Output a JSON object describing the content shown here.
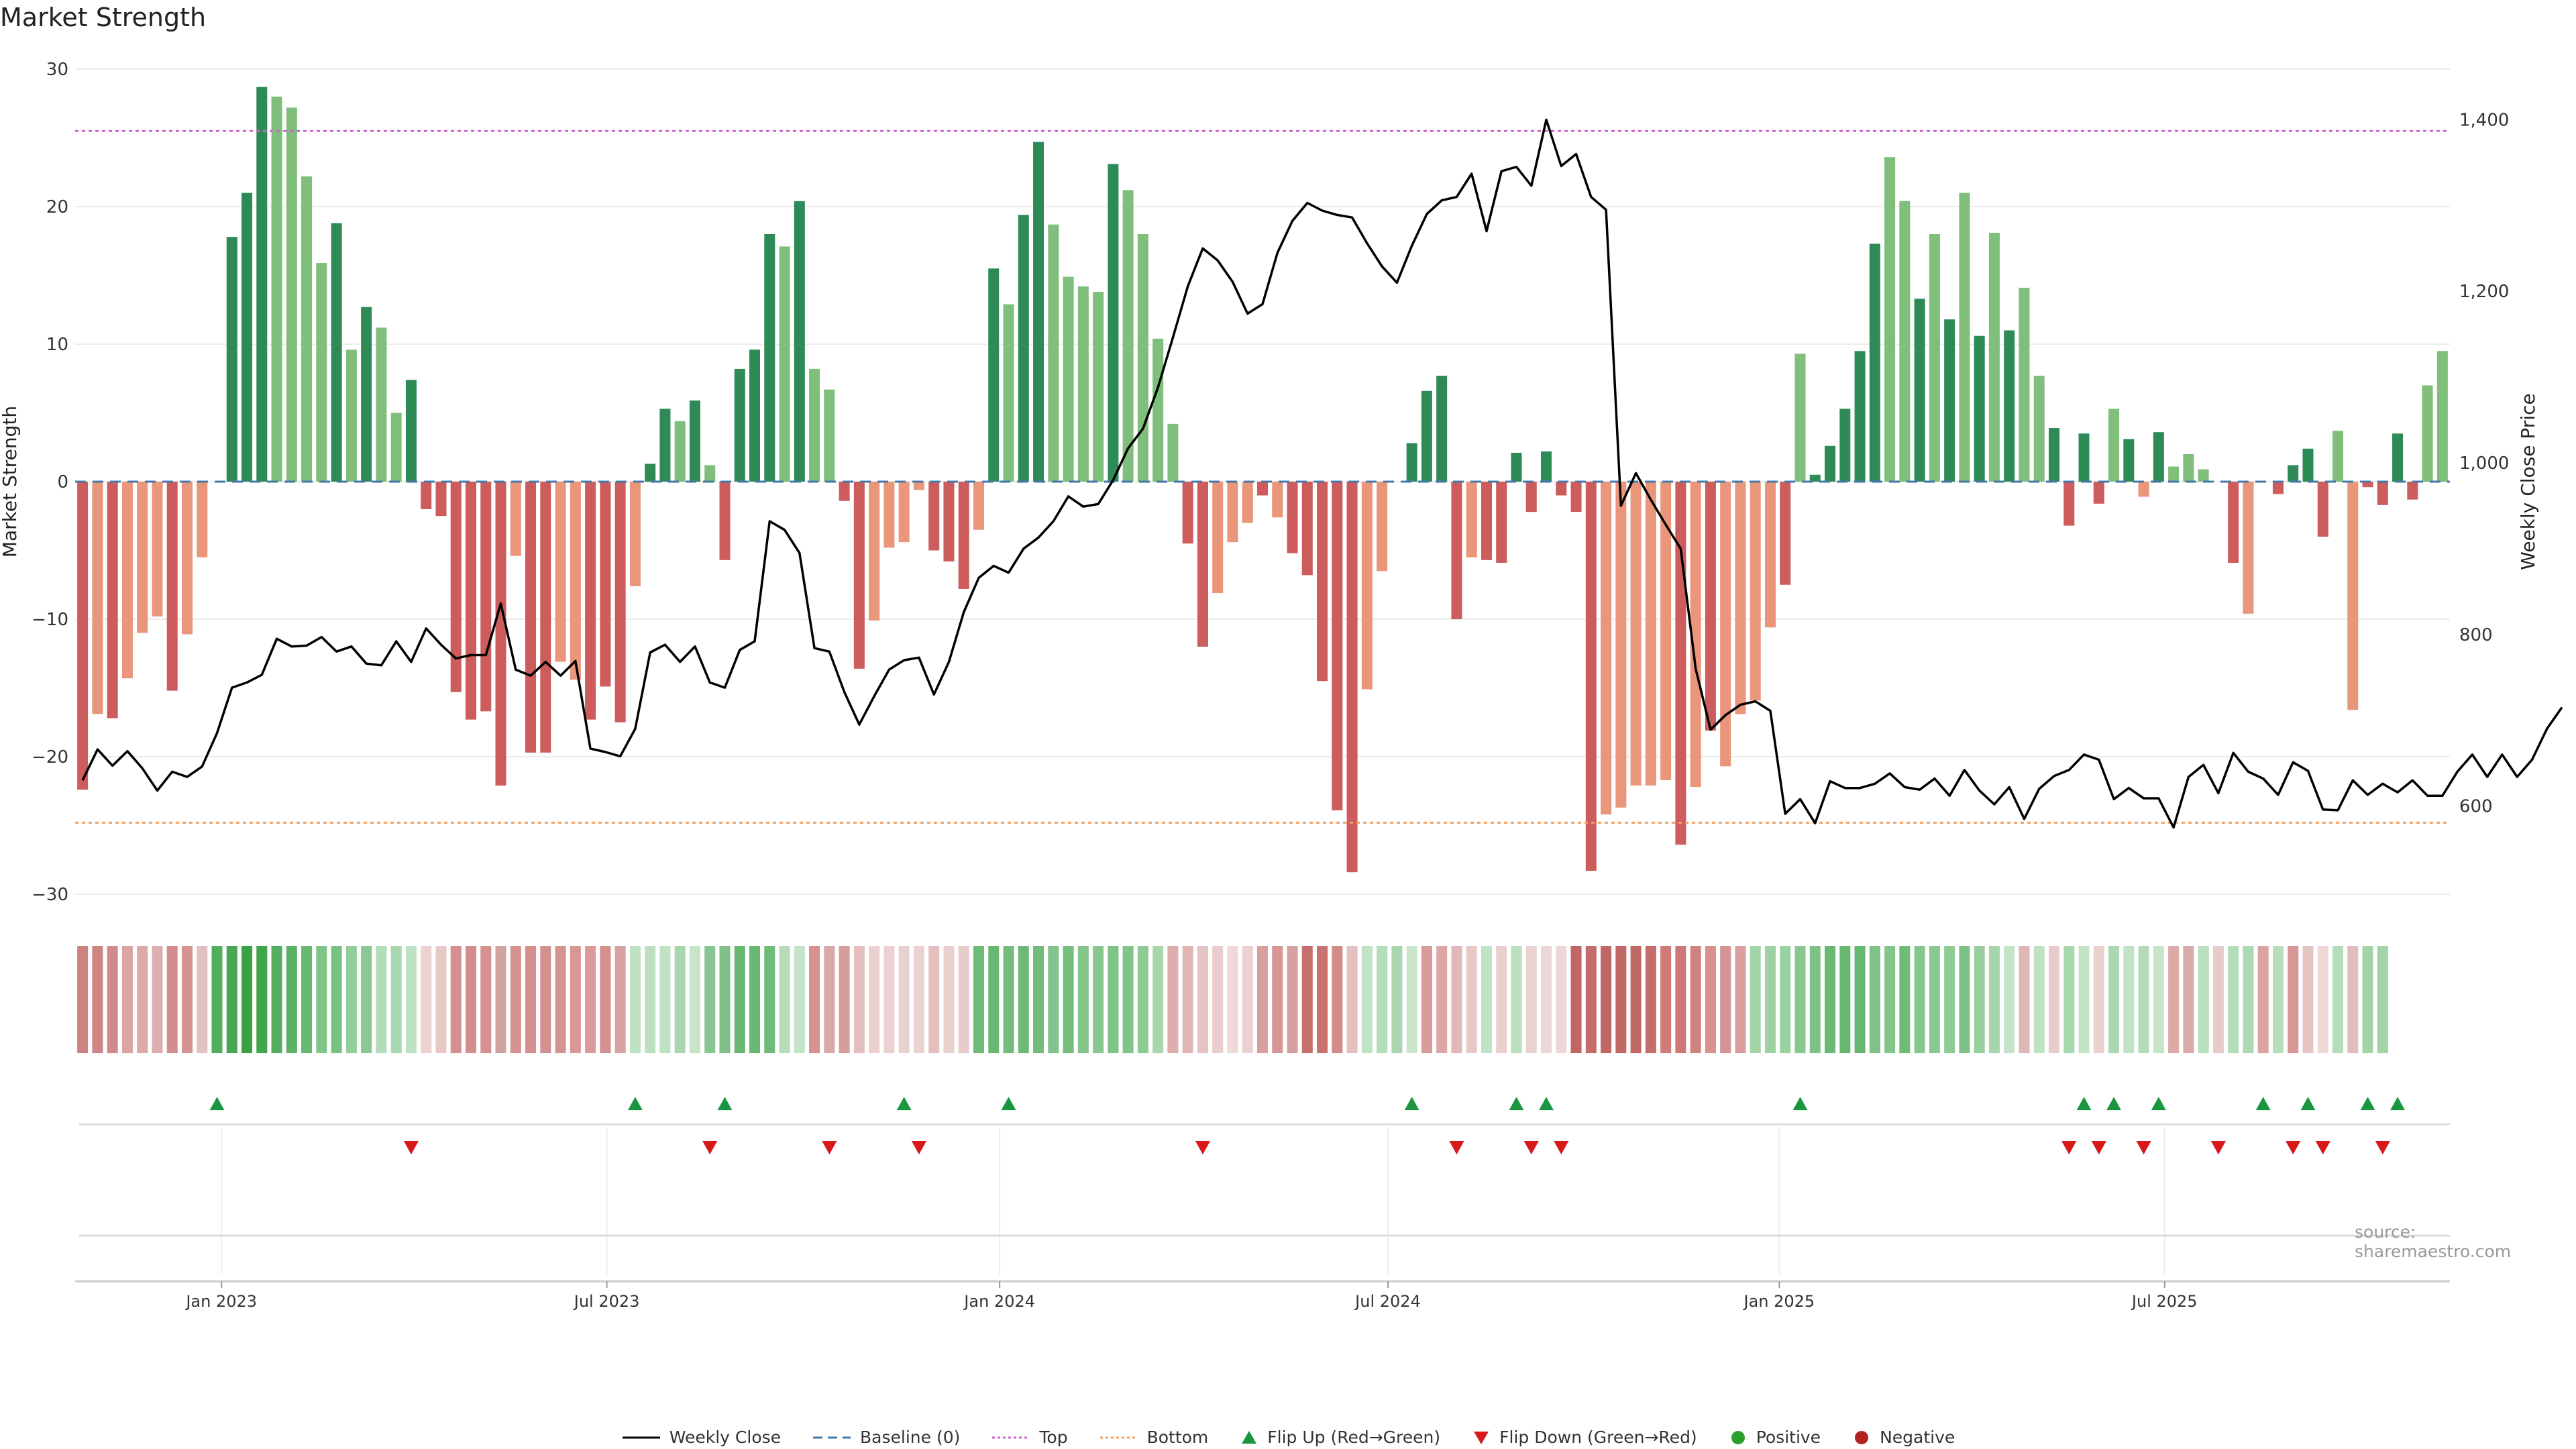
{
  "title": "Market Strength",
  "source": "source: sharemaestro.com",
  "colors": {
    "green_dark": "#2e8b57",
    "green_light": "#7fbf7b",
    "red_dark": "#cd5c5c",
    "red_light": "#e9967a",
    "top_line": "#cc66cc",
    "bottom_line": "#f0a060",
    "baseline": "#4477aa",
    "flip_up": "#1a9641",
    "flip_down": "#d7191c",
    "positive": "#2ca02c",
    "negative": "#b22222",
    "price": "#000000"
  },
  "chart_data": {
    "type": "bar",
    "title": "Market Strength",
    "ylabel": "Market Strength",
    "y2label": "Weekly Close Price",
    "ylim": [
      -30,
      30
    ],
    "y2lim": [
      500,
      1470
    ],
    "yticks": [
      -30,
      -20,
      -10,
      0,
      10,
      20,
      30
    ],
    "yticklabels": [
      "−30",
      "−20",
      "−10",
      "0",
      "10",
      "20",
      "30"
    ],
    "y2ticks": [
      600,
      800,
      1000,
      1200,
      1400
    ],
    "y2ticklabels": [
      "600",
      "800",
      "1,000",
      "1,200",
      "1,400"
    ],
    "x_start_week": 0,
    "x_end_week": 157,
    "xticks": [
      {
        "week": 9.3,
        "label": "Jan 2023"
      },
      {
        "week": 35.1,
        "label": "Jul 2023"
      },
      {
        "week": 61.4,
        "label": "Jan 2024"
      },
      {
        "week": 87.4,
        "label": "Jul 2024"
      },
      {
        "week": 113.6,
        "label": "Jan 2025"
      },
      {
        "week": 139.4,
        "label": "Jul 2025"
      }
    ],
    "top_level": 25.5,
    "bottom_level": -24.8,
    "strength": [
      -22.4,
      -16.9,
      -17.2,
      -14.3,
      -11,
      -9.8,
      -15.2,
      -11.1,
      -5.5,
      0,
      17.8,
      21,
      28.7,
      28,
      27.2,
      22.2,
      15.9,
      18.8,
      9.6,
      12.7,
      11.2,
      5,
      7.4,
      -2,
      -2.5,
      -15.3,
      -17.3,
      -16.7,
      -22.1,
      -5.4,
      -19.7,
      -19.7,
      -13.1,
      -14.4,
      -17.3,
      -14.9,
      -17.5,
      -7.6,
      1.3,
      5.3,
      4.4,
      5.9,
      1.2,
      -5.7,
      8.2,
      9.6,
      18,
      17.1,
      20.4,
      8.2,
      6.7,
      -1.4,
      -13.6,
      -10.1,
      -4.8,
      -4.4,
      -0.6,
      -5,
      -5.8,
      -7.8,
      -3.5,
      15.5,
      12.9,
      19.4,
      24.7,
      18.7,
      14.9,
      14.2,
      13.8,
      23.1,
      21.2,
      18,
      10.4,
      4.2,
      -4.5,
      -12,
      -8.1,
      -4.4,
      -3,
      -1,
      -2.6,
      -5.2,
      -6.8,
      -14.5,
      -23.9,
      -28.4,
      -15.1,
      -6.5,
      0,
      2.8,
      6.6,
      7.7,
      -10,
      -5.5,
      -5.7,
      -5.9,
      2.1,
      -2.2,
      2.2,
      -1,
      -2.2,
      -28.3,
      -24.2,
      -23.7,
      -22.1,
      -22.1,
      -21.7,
      -26.4,
      -22.2,
      -18.1,
      -20.7,
      -16.9,
      -15.9,
      -10.6,
      -7.5,
      9.3,
      0.5,
      2.6,
      5.3,
      9.5,
      17.3,
      23.6,
      20.4,
      13.3,
      18,
      11.8,
      21,
      10.6,
      18.1,
      11,
      14.1,
      7.7,
      3.9,
      -3.2,
      3.5,
      -1.6,
      5.3,
      3.1,
      -1.1,
      3.6,
      1.1,
      2,
      0.9,
      0,
      -5.9,
      -9.6,
      0,
      -0.9,
      1.2,
      2.4,
      -4,
      3.7,
      -16.6,
      -0.4,
      -1.7,
      3.5,
      -1.3,
      7,
      9.5
    ],
    "bar_shade": [
      1,
      0,
      1,
      0,
      0,
      0,
      1,
      0,
      0,
      0,
      1,
      1,
      1,
      0,
      0,
      0,
      0,
      1,
      0,
      1,
      0,
      0,
      1,
      1,
      1,
      1,
      1,
      1,
      1,
      0,
      1,
      1,
      0,
      0,
      1,
      1,
      1,
      0,
      1,
      1,
      0,
      1,
      0,
      1,
      1,
      1,
      1,
      0,
      1,
      0,
      0,
      1,
      1,
      0,
      0,
      0,
      0,
      1,
      1,
      1,
      0,
      1,
      0,
      1,
      1,
      0,
      0,
      0,
      0,
      1,
      0,
      0,
      0,
      0,
      1,
      1,
      0,
      0,
      0,
      1,
      0,
      1,
      1,
      1,
      1,
      1,
      0,
      0,
      0,
      1,
      1,
      1,
      1,
      0,
      1,
      1,
      1,
      1,
      1,
      1,
      1,
      1,
      0,
      0,
      0,
      0,
      0,
      1,
      0,
      1,
      0,
      0,
      0,
      0,
      1,
      0,
      1,
      1,
      1,
      1,
      1,
      0,
      0,
      1,
      0,
      1,
      0,
      1,
      0,
      1,
      0,
      0,
      1,
      1,
      1,
      1,
      0,
      1,
      0,
      1,
      0,
      0,
      0,
      1,
      1,
      0,
      0,
      1,
      1,
      1,
      1,
      0,
      0,
      1,
      1,
      1,
      1
    ],
    "price_series": {
      "name": "Weekly Close",
      "values": [
        630,
        666,
        647,
        664,
        644,
        618,
        640,
        634,
        646,
        685,
        738,
        744,
        753,
        795,
        786,
        787,
        797,
        780,
        786,
        766,
        764,
        792,
        768,
        807,
        788,
        772,
        776,
        776,
        836,
        759,
        752,
        768,
        752,
        769,
        667,
        663,
        658,
        690,
        779,
        788,
        768,
        786,
        744,
        738,
        782,
        792,
        932,
        922,
        895,
        784,
        780,
        733,
        695,
        728,
        759,
        770,
        773,
        730,
        768,
        826,
        866,
        880,
        872,
        900,
        913,
        932,
        961,
        949,
        952,
        980,
        1017,
        1040,
        1088,
        1146,
        1206,
        1250,
        1236,
        1211,
        1174,
        1185,
        1245,
        1282,
        1303,
        1294,
        1289,
        1286,
        1256,
        1229,
        1210,
        1253,
        1290,
        1306,
        1310,
        1337,
        1270,
        1340,
        1345,
        1323,
        1400,
        1346,
        1360,
        1310,
        1295,
        950,
        988,
        957,
        928,
        900,
        760,
        689,
        706,
        718,
        722,
        711,
        591,
        608,
        580,
        629,
        621,
        621,
        626,
        638,
        622,
        619,
        632,
        612,
        642,
        618,
        602,
        622,
        585,
        620,
        635,
        642,
        660,
        654,
        608,
        621,
        609,
        609,
        575,
        634,
        648,
        615,
        662,
        640,
        632,
        613,
        651,
        641,
        596,
        595,
        630,
        613,
        626,
        616,
        630,
        612,
        612,
        640,
        660,
        634,
        660,
        634,
        654,
        690,
        715
      ]
    },
    "band_colors": [
      "#cd8382",
      "#ce8685",
      "#cf8a89",
      "#d9a4a3",
      "#dba9a8",
      "#ddaeae",
      "#d28d8c",
      "#d59392",
      "#e3c1c0",
      "#52ad5f",
      "#47a853",
      "#3ba244",
      "#3fa64b",
      "#53ae5f",
      "#5ab365",
      "#66b971",
      "#7fc488",
      "#78c181",
      "#91ce99",
      "#8ec796",
      "#b3dcb9",
      "#a8d6ae",
      "#bfe1c3",
      "#ebd1d0",
      "#e8c8c7",
      "#d58f8e",
      "#d28e8d",
      "#d6908f",
      "#d0a3a2",
      "#d6908f",
      "#d58f8e",
      "#d39190",
      "#d59392",
      "#d89695",
      "#db9a99",
      "#d58f8e",
      "#d8a2a1",
      "#bee1c3",
      "#bce0c1",
      "#bfe2c4",
      "#a9d6ad",
      "#c5e4c8",
      "#89c792",
      "#7fc189",
      "#68b872",
      "#67b872",
      "#6fbc78",
      "#b5dbb8",
      "#c4e3c8",
      "#d6908f",
      "#d9a9a8",
      "#d69d9c",
      "#e4bfbe",
      "#ebd0cf",
      "#ebd1d0",
      "#e9d1d0",
      "#ebd2d1",
      "#e3c0bf",
      "#ead1d0",
      "#e6cdcc",
      "#6ebb77",
      "#69b872",
      "#74bc7d",
      "#6eb977",
      "#73bd7c",
      "#82c48b",
      "#74bd7d",
      "#84c58c",
      "#88c790",
      "#80c388",
      "#81c489",
      "#8ccb94",
      "#a8d6ad",
      "#ddaeae",
      "#e0b5b4",
      "#e5c3c2",
      "#e9cdcc",
      "#eed8d8",
      "#ead0cf",
      "#d79f9e",
      "#d89796",
      "#d7a09f",
      "#c66f6d",
      "#c97371",
      "#d38b8a",
      "#e3c1c0",
      "#c0e2c5",
      "#b4ddba",
      "#a9d6ae",
      "#cae6cd",
      "#d99b9a",
      "#dba6a5",
      "#e1b8b7",
      "#e7c8c7",
      "#c0e2c5",
      "#e9d0cf",
      "#b9dfbe",
      "#ead2d1",
      "#edd6d6",
      "#edd7d7",
      "#c06664",
      "#c56c6a",
      "#c06664",
      "#c26866",
      "#c26866",
      "#c56d6b",
      "#cf7b79",
      "#cd7977",
      "#d08280",
      "#d7918f",
      "#d59493",
      "#db9e9c",
      "#a2d4a8",
      "#9ed2a4",
      "#9ad1a1",
      "#88c890",
      "#7dc385",
      "#6ab873",
      "#68b771",
      "#66b76f",
      "#7fc287",
      "#84c58c",
      "#6fbb78",
      "#87c68f",
      "#89c891",
      "#8ecb95",
      "#7cc185",
      "#99cf9f",
      "#a6d5ac",
      "#c4e3c8",
      "#e0b7b6",
      "#bfe2c4",
      "#e7cccb",
      "#a9d7ae",
      "#c2e3c6",
      "#ead1d0",
      "#acd8b1",
      "#c1e2c5",
      "#b3dbb8",
      "#c6e4ca",
      "#dcaba9",
      "#d9aaa9",
      "#b9dfbe",
      "#e5cbca",
      "#b3dcb8",
      "#addab2",
      "#dba4a3",
      "#b7deba",
      "#d69795",
      "#e5c5c4",
      "#eed7d6",
      "#b4ddb9",
      "#e0bebd",
      "#a2d4a8",
      "#a2d4a8"
    ],
    "flip_up_weeks": [
      9,
      37,
      43,
      55,
      62,
      89,
      96,
      98,
      115,
      134,
      136,
      139,
      146,
      149,
      153,
      155
    ],
    "flip_down_weeks": [
      22,
      42,
      50,
      56,
      75,
      92,
      97,
      99,
      133,
      135,
      138,
      143,
      148,
      150,
      154
    ],
    "legend": [
      "Weekly Close",
      "Baseline (0)",
      "Top",
      "Bottom",
      "Flip Up (Red→Green)",
      "Flip Down (Green→Red)",
      "Positive",
      "Negative"
    ]
  }
}
